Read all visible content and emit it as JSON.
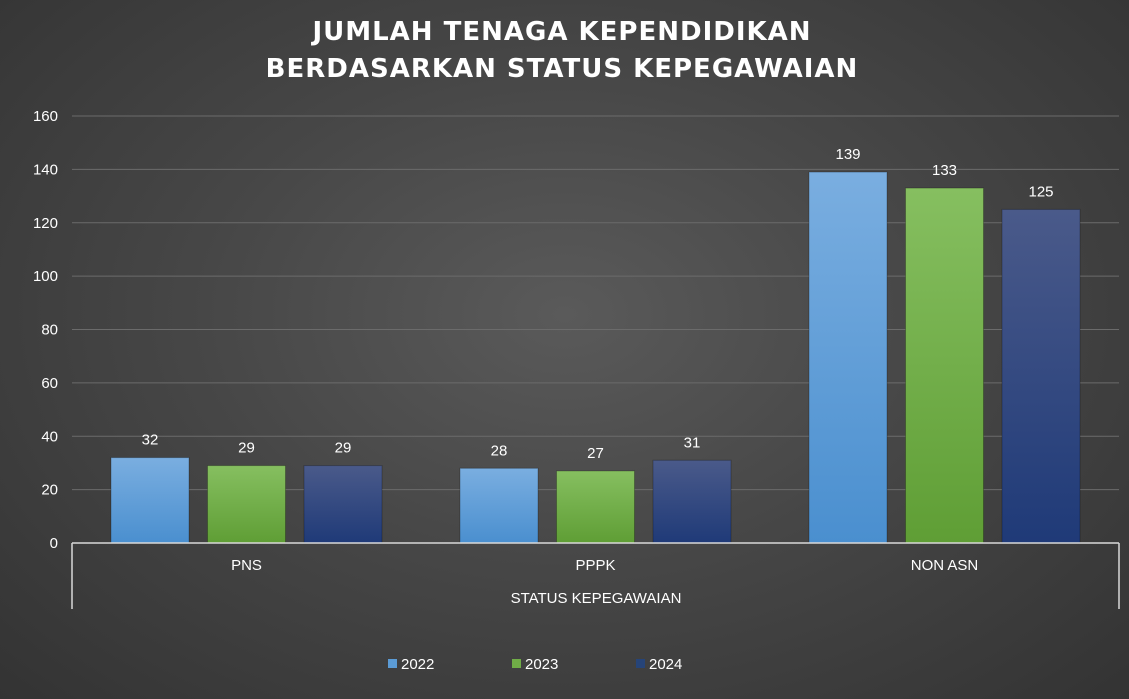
{
  "chart_data": {
    "type": "bar",
    "title": [
      "JUMLAH TENAGA KEPENDIDIKAN",
      "BERDASARKAN STATUS KEPEGAWAIAN"
    ],
    "xlabel": "STATUS KEPEGAWAIAN",
    "ylabel": "",
    "categories": [
      "PNS",
      "PPPK",
      "NON ASN"
    ],
    "ylim": [
      0,
      160
    ],
    "yticks": [
      0,
      20,
      40,
      60,
      80,
      100,
      120,
      140,
      160
    ],
    "grid": true,
    "legend_position": "bottom",
    "series": [
      {
        "name": "2022",
        "values": [
          32,
          28,
          139
        ],
        "color": "#5b9bd5"
      },
      {
        "name": "2023",
        "values": [
          29,
          27,
          133
        ],
        "color": "#70ad47"
      },
      {
        "name": "2024",
        "values": [
          29,
          31,
          125
        ],
        "color": "#264478"
      }
    ]
  }
}
